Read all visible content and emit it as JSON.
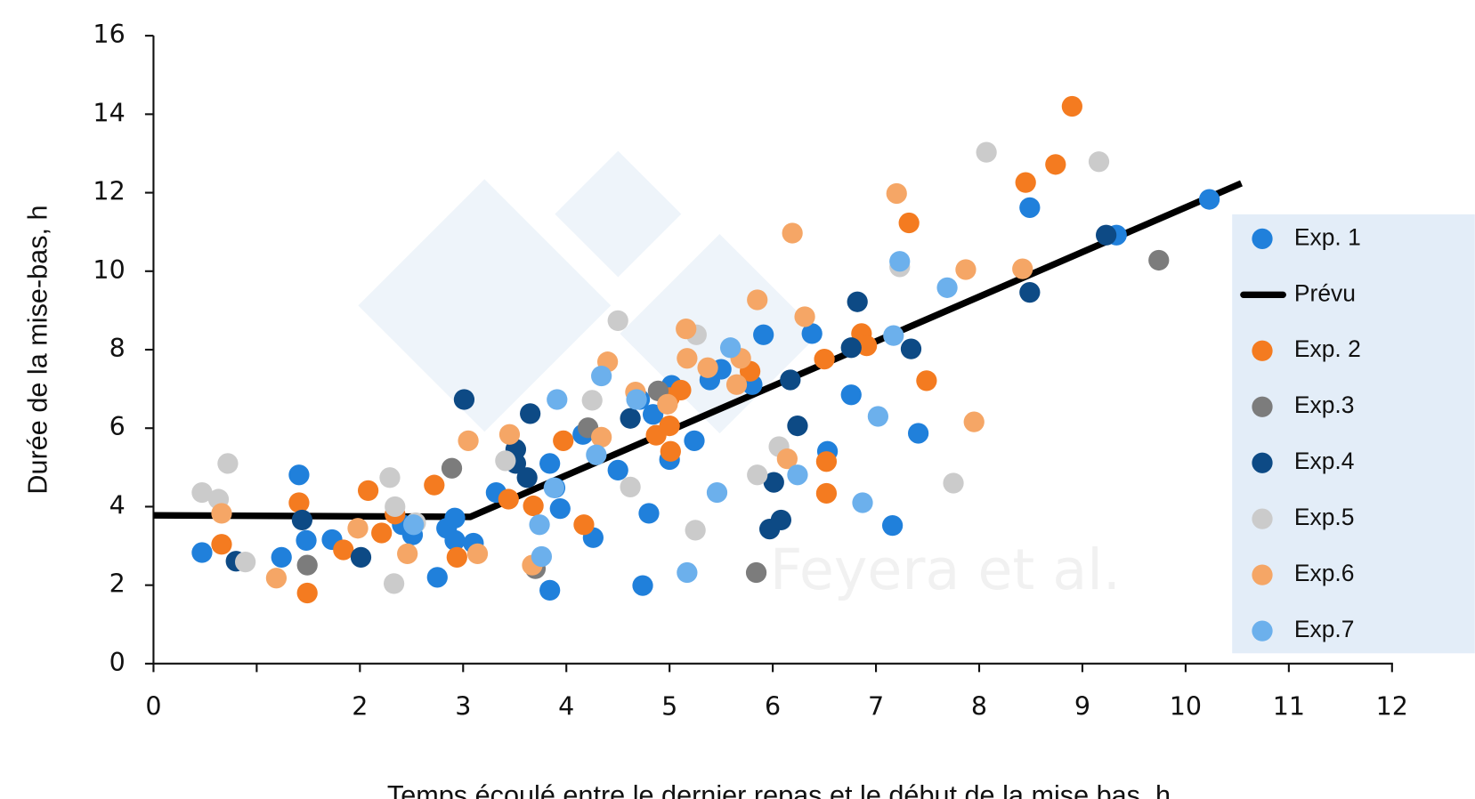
{
  "chart_data": {
    "type": "scatter",
    "x_label": "Temps écoulé entre le dernier repas et le début de la mise bas, h",
    "y_label": "Durée de la mise-bas, h",
    "watermark": "Feyera et al.",
    "xlim": [
      0,
      12
    ],
    "ylim": [
      0,
      16
    ],
    "xticks": [
      0,
      {
        "value": 1,
        "label": null
      },
      2,
      3,
      4,
      5,
      6,
      7,
      8,
      9,
      10,
      11,
      12
    ],
    "yticks": [
      0,
      2,
      4,
      6,
      8,
      10,
      12,
      14,
      16
    ],
    "legend": "right",
    "series": [
      {
        "name": "Exp. 1",
        "color": "#2080db",
        "x": [
          0.47,
          1.41,
          1.24,
          1.48,
          1.73,
          2.41,
          2.51,
          2.75,
          2.84,
          2.92,
          2.92,
          3.1,
          3.32,
          3.84,
          3.89,
          3.94,
          3.84,
          4.16,
          4.26,
          4.5,
          4.71,
          4.8,
          4.84,
          4.74,
          5.02,
          5.0,
          5.24,
          5.39,
          5.5,
          5.8,
          5.91,
          6.38,
          6.53,
          6.76,
          7.16,
          7.41,
          8.49,
          9.33,
          10.23
        ],
        "values": [
          2.83,
          4.81,
          2.71,
          3.14,
          3.16,
          3.54,
          3.28,
          2.2,
          3.45,
          3.71,
          3.14,
          3.07,
          4.36,
          5.1,
          4.48,
          3.95,
          1.87,
          5.84,
          3.21,
          4.93,
          6.73,
          3.83,
          6.35,
          1.99,
          7.09,
          5.2,
          5.68,
          7.23,
          7.5,
          7.11,
          8.38,
          8.41,
          5.41,
          6.85,
          3.52,
          5.87,
          11.62,
          10.92,
          11.83
        ]
      },
      {
        "name": "Prévu",
        "color": "#000000",
        "kind": "line",
        "x": [
          0,
          3.07,
          10.54
        ],
        "values": [
          3.78,
          3.74,
          12.24
        ]
      },
      {
        "name": "Exp. 2",
        "color": "#f47b20",
        "x": [
          0.66,
          1.41,
          1.49,
          1.84,
          2.08,
          2.21,
          2.34,
          2.72,
          2.94,
          3.44,
          3.68,
          3.97,
          4.17,
          5.0,
          4.87,
          5.0,
          5.01,
          5.11,
          5.78,
          6.5,
          6.52,
          6.52,
          6.86,
          6.91,
          7.32,
          7.49,
          8.45,
          8.74,
          8.9
        ],
        "values": [
          3.04,
          4.1,
          1.8,
          2.9,
          4.41,
          3.33,
          3.81,
          4.55,
          2.71,
          4.19,
          4.02,
          5.68,
          3.54,
          6.78,
          5.82,
          6.06,
          5.41,
          6.97,
          7.45,
          7.76,
          4.34,
          5.15,
          8.41,
          8.1,
          11.23,
          7.21,
          12.26,
          12.72,
          14.2
        ]
      },
      {
        "name": "Exp.3",
        "color": "#7c7c7c",
        "x": [
          1.49,
          2.89,
          3.7,
          4.21,
          4.89,
          5.84,
          9.74
        ],
        "values": [
          2.51,
          4.98,
          2.42,
          6.01,
          6.95,
          2.32,
          10.28
        ]
      },
      {
        "name": "Exp.4",
        "color": "#0d4a85",
        "x": [
          0.8,
          1.44,
          2.01,
          3.01,
          3.51,
          3.51,
          3.62,
          3.65,
          4.62,
          6.01,
          5.97,
          6.08,
          6.17,
          6.24,
          6.76,
          6.82,
          7.34,
          8.49,
          9.23
        ],
        "values": [
          2.61,
          3.66,
          2.71,
          6.73,
          5.46,
          5.1,
          4.74,
          6.37,
          6.25,
          4.62,
          3.43,
          3.66,
          7.23,
          6.06,
          8.05,
          9.22,
          8.02,
          9.46,
          10.92
        ]
      },
      {
        "name": "Exp.5",
        "color": "#cbcbcb",
        "x": [
          0.47,
          0.63,
          0.72,
          0.89,
          2.29,
          2.34,
          2.33,
          2.54,
          3.41,
          4.25,
          4.5,
          4.62,
          5.26,
          5.25,
          5.85,
          6.06,
          7.23,
          8.07,
          9.16,
          7.75
        ],
        "values": [
          4.36,
          4.19,
          5.1,
          2.59,
          4.74,
          4.0,
          2.04,
          3.59,
          5.17,
          6.71,
          8.74,
          4.5,
          8.38,
          3.4,
          4.81,
          5.53,
          10.11,
          13.03,
          12.79,
          4.6
        ]
      },
      {
        "name": "Exp.6",
        "color": "#f5a666",
        "x": [
          0.66,
          1.19,
          1.98,
          2.46,
          3.05,
          3.14,
          3.45,
          3.67,
          4.34,
          4.4,
          4.67,
          5.17,
          5.16,
          5.37,
          5.65,
          5.69,
          5.85,
          6.14,
          6.19,
          6.31,
          7.2,
          7.87,
          7.95,
          8.42,
          4.98
        ],
        "values": [
          3.83,
          2.18,
          3.45,
          2.8,
          5.68,
          2.8,
          5.84,
          2.51,
          5.77,
          7.69,
          6.92,
          7.78,
          8.53,
          7.54,
          7.11,
          7.78,
          9.27,
          5.22,
          10.97,
          8.84,
          11.98,
          10.04,
          6.16,
          10.06,
          6.61
        ]
      },
      {
        "name": "Exp.7",
        "color": "#6cb0ec",
        "x": [
          2.52,
          3.74,
          3.76,
          3.88,
          3.91,
          4.29,
          4.34,
          4.68,
          5.17,
          5.46,
          5.59,
          6.24,
          6.87,
          7.02,
          7.17,
          7.23,
          7.69
        ],
        "values": [
          3.54,
          3.54,
          2.73,
          4.48,
          6.73,
          5.32,
          7.33,
          6.73,
          2.32,
          4.36,
          8.05,
          4.81,
          4.1,
          6.3,
          8.36,
          10.25,
          9.58
        ]
      }
    ]
  }
}
